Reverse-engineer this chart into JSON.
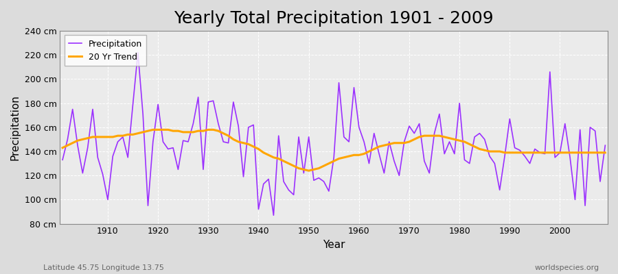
{
  "title": "Yearly Total Precipitation 1901 - 2009",
  "xlabel": "Year",
  "ylabel": "Precipitation",
  "subtitle_left": "Latitude 45.75 Longitude 13.75",
  "subtitle_right": "worldspecies.org",
  "years": [
    1901,
    1902,
    1903,
    1904,
    1905,
    1906,
    1907,
    1908,
    1909,
    1910,
    1911,
    1912,
    1913,
    1914,
    1915,
    1916,
    1917,
    1918,
    1919,
    1920,
    1921,
    1922,
    1923,
    1924,
    1925,
    1926,
    1927,
    1928,
    1929,
    1930,
    1931,
    1932,
    1933,
    1934,
    1935,
    1936,
    1937,
    1938,
    1939,
    1940,
    1941,
    1942,
    1943,
    1944,
    1945,
    1946,
    1947,
    1948,
    1949,
    1950,
    1951,
    1952,
    1953,
    1954,
    1955,
    1956,
    1957,
    1958,
    1959,
    1960,
    1961,
    1962,
    1963,
    1964,
    1965,
    1966,
    1967,
    1968,
    1969,
    1970,
    1971,
    1972,
    1973,
    1974,
    1975,
    1976,
    1977,
    1978,
    1979,
    1980,
    1981,
    1982,
    1983,
    1984,
    1985,
    1986,
    1987,
    1988,
    1989,
    1990,
    1991,
    1992,
    1993,
    1994,
    1995,
    1996,
    1997,
    1998,
    1999,
    2000,
    2001,
    2002,
    2003,
    2004,
    2005,
    2006,
    2007,
    2008,
    2009
  ],
  "precipitation": [
    133,
    150,
    175,
    145,
    122,
    143,
    175,
    135,
    121,
    100,
    136,
    148,
    152,
    135,
    179,
    222,
    171,
    95,
    148,
    179,
    148,
    142,
    143,
    125,
    149,
    148,
    163,
    185,
    125,
    181,
    182,
    163,
    148,
    147,
    181,
    161,
    119,
    160,
    162,
    92,
    113,
    117,
    87,
    153,
    115,
    108,
    104,
    152,
    122,
    152,
    116,
    118,
    115,
    107,
    135,
    197,
    152,
    148,
    193,
    160,
    148,
    130,
    155,
    138,
    122,
    148,
    132,
    120,
    148,
    161,
    155,
    163,
    132,
    122,
    155,
    171,
    138,
    148,
    138,
    180,
    133,
    130,
    152,
    155,
    150,
    136,
    130,
    108,
    136,
    167,
    143,
    141,
    136,
    130,
    142,
    139,
    138,
    206,
    135,
    139,
    163,
    135,
    100,
    158,
    95,
    160,
    157,
    115,
    145
  ],
  "trend": [
    143,
    145,
    147,
    149,
    150,
    151,
    152,
    152,
    152,
    152,
    152,
    153,
    153,
    154,
    154,
    155,
    156,
    157,
    158,
    158,
    158,
    158,
    157,
    157,
    156,
    156,
    156,
    157,
    157,
    158,
    158,
    157,
    155,
    153,
    150,
    148,
    147,
    146,
    144,
    142,
    139,
    137,
    135,
    134,
    132,
    130,
    128,
    126,
    125,
    124,
    125,
    126,
    128,
    130,
    132,
    134,
    135,
    136,
    137,
    137,
    138,
    140,
    142,
    144,
    145,
    146,
    147,
    147,
    147,
    148,
    150,
    152,
    153,
    153,
    153,
    153,
    152,
    151,
    150,
    149,
    148,
    146,
    144,
    142,
    141,
    140,
    140,
    140,
    139,
    139,
    139,
    139,
    139,
    139,
    139,
    139,
    139,
    139,
    139,
    139,
    139,
    139,
    139,
    139,
    139,
    139,
    139,
    139,
    139
  ],
  "precipitation_color": "#9B30FF",
  "trend_color": "#FFA500",
  "bg_color": "#DCDCDC",
  "plot_bg_color": "#EBEBEB",
  "grid_color": "#FFFFFF",
  "ylim": [
    80,
    240
  ],
  "yticks": [
    80,
    100,
    120,
    140,
    160,
    180,
    200,
    220,
    240
  ],
  "xticks": [
    1910,
    1920,
    1930,
    1940,
    1950,
    1960,
    1970,
    1980,
    1990,
    2000
  ],
  "title_fontsize": 18,
  "axis_label_fontsize": 11,
  "tick_fontsize": 9,
  "legend_fontsize": 9
}
